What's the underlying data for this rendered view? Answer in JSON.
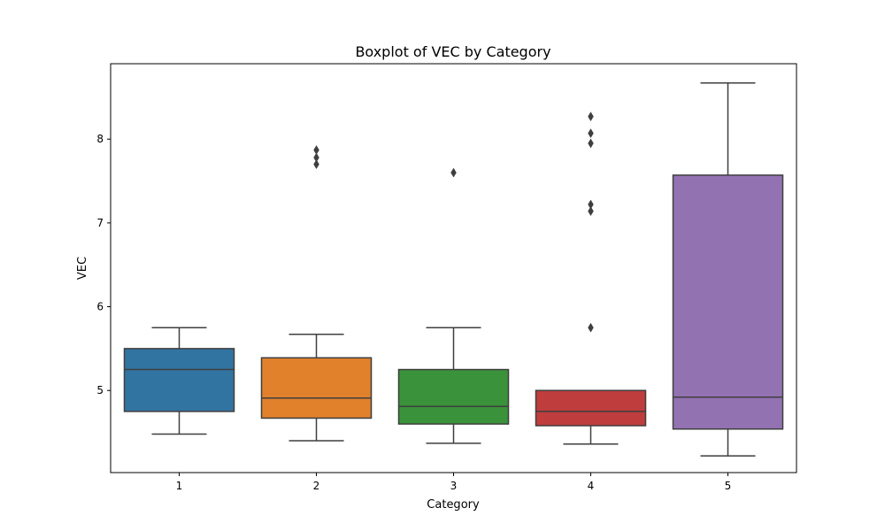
{
  "chart_data": {
    "type": "box",
    "title": "Boxplot of VEC by Category",
    "xlabel": "Category",
    "ylabel": "VEC",
    "categories": [
      "1",
      "2",
      "3",
      "4",
      "5"
    ],
    "yticks": [
      5,
      6,
      7,
      8
    ],
    "ylim": [
      4.02,
      8.9
    ],
    "grid": false,
    "boxes": [
      {
        "category": "1",
        "whisker_low": 4.48,
        "q1": 4.75,
        "median": 5.25,
        "q3": 5.5,
        "whisker_high": 5.75,
        "outliers": [],
        "color": "#3274a1"
      },
      {
        "category": "2",
        "whisker_low": 4.4,
        "q1": 4.67,
        "median": 4.91,
        "q3": 5.39,
        "whisker_high": 5.67,
        "outliers": [
          7.7,
          7.78,
          7.87
        ],
        "color": "#e1812c"
      },
      {
        "category": "3",
        "whisker_low": 4.37,
        "q1": 4.6,
        "median": 4.81,
        "q3": 5.25,
        "whisker_high": 5.75,
        "outliers": [
          7.6
        ],
        "color": "#3a923a"
      },
      {
        "category": "4",
        "whisker_low": 4.36,
        "q1": 4.58,
        "median": 4.75,
        "q3": 5.0,
        "whisker_high": 5.0,
        "outliers": [
          5.75,
          7.14,
          7.22,
          7.95,
          8.07,
          8.27
        ],
        "color": "#c03d3e"
      },
      {
        "category": "5",
        "whisker_low": 4.22,
        "q1": 4.54,
        "median": 4.92,
        "q3": 7.57,
        "whisker_high": 8.67,
        "outliers": [],
        "color": "#9372b2"
      }
    ]
  }
}
